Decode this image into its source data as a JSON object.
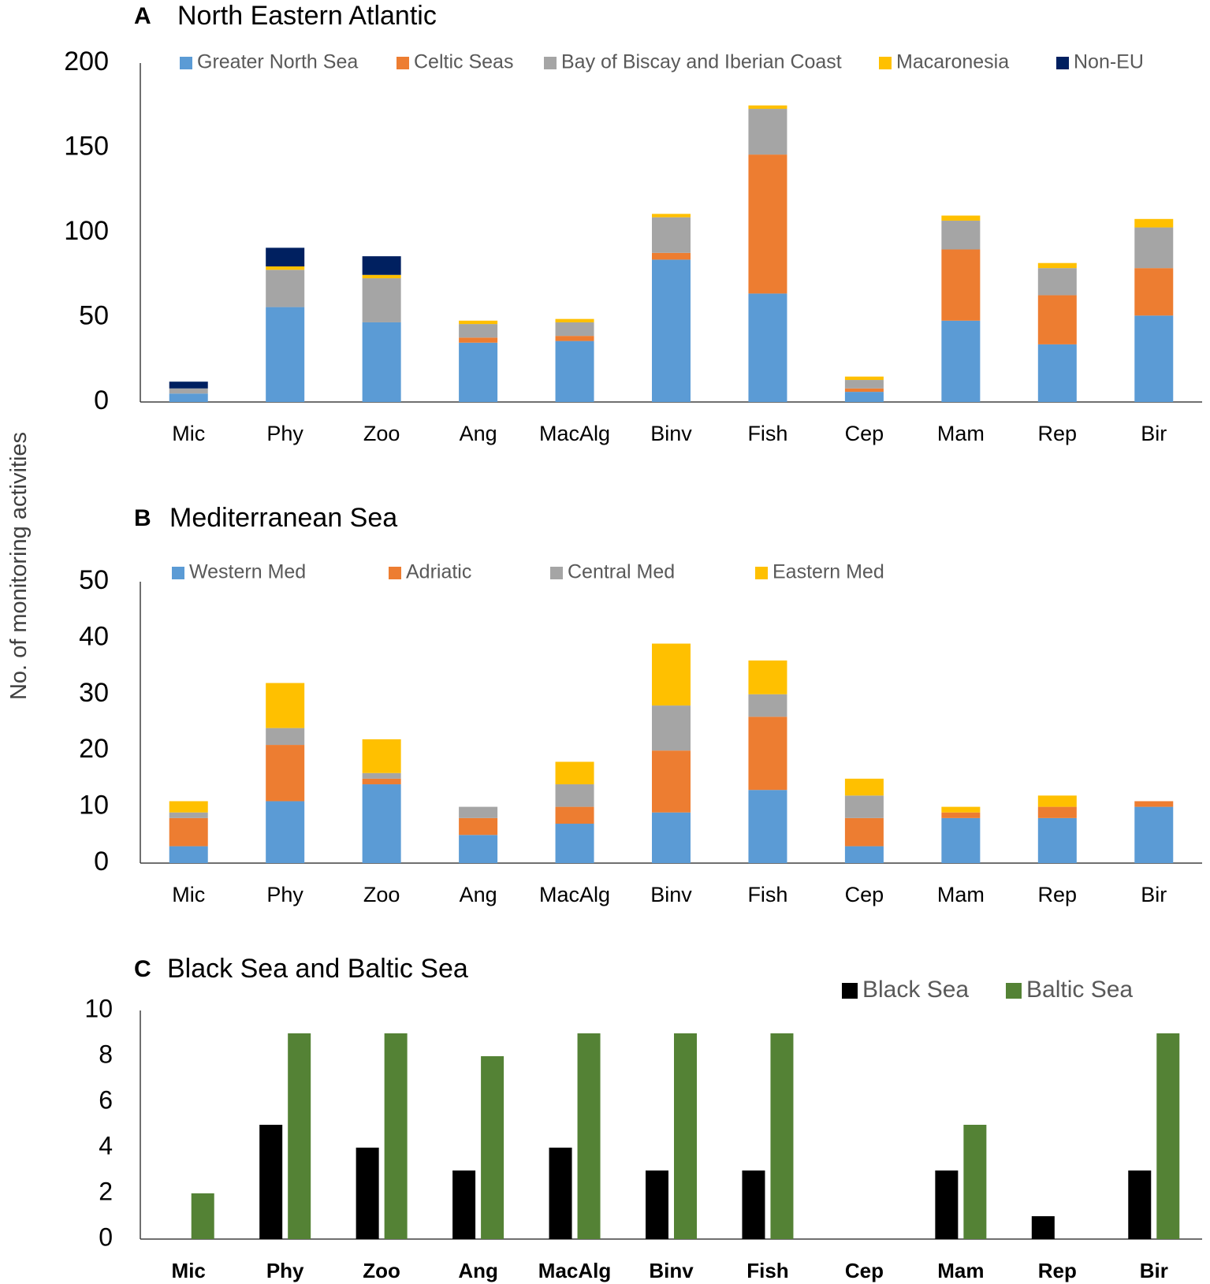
{
  "figure": {
    "ylabel": "No. of monitoring activities"
  },
  "chart_data": [
    {
      "type": "bar",
      "stacked": true,
      "panel_letter": "A",
      "title": "North Eastern Atlantic",
      "ylim": [
        0,
        200
      ],
      "yticks": [
        0,
        50,
        100,
        150,
        200
      ],
      "legend_placement": "top",
      "categories": [
        "Mic",
        "Phy",
        "Zoo",
        "Ang",
        "MacAlg",
        "Binv",
        "Fish",
        "Cep",
        "Mam",
        "Rep",
        "Bir"
      ],
      "series": [
        {
          "name": "Greater North Sea",
          "color": "#5b9bd5",
          "values": [
            5,
            56,
            47,
            35,
            36,
            84,
            64,
            6,
            48,
            34,
            51
          ]
        },
        {
          "name": "Celtic Seas",
          "color": "#ed7d31",
          "values": [
            0,
            0,
            0,
            3,
            3,
            4,
            82,
            2,
            42,
            29,
            28
          ]
        },
        {
          "name": "Bay of Biscay and Iberian Coast",
          "color": "#a5a5a5",
          "values": [
            3,
            22,
            26,
            8,
            8,
            21,
            27,
            5,
            17,
            16,
            24
          ]
        },
        {
          "name": "Macaronesia",
          "color": "#ffc000",
          "values": [
            0,
            2,
            2,
            2,
            2,
            2,
            2,
            2,
            3,
            3,
            5
          ]
        },
        {
          "name": "Non-EU",
          "color": "#002060",
          "values": [
            4,
            11,
            11,
            0,
            0,
            0,
            0,
            0,
            0,
            0,
            0
          ]
        }
      ]
    },
    {
      "type": "bar",
      "stacked": true,
      "panel_letter": "B",
      "title": "Mediterranean Sea",
      "ylim": [
        0,
        50
      ],
      "yticks": [
        0,
        10,
        20,
        30,
        40,
        50
      ],
      "legend_placement": "top",
      "categories": [
        "Mic",
        "Phy",
        "Zoo",
        "Ang",
        "MacAlg",
        "Binv",
        "Fish",
        "Cep",
        "Mam",
        "Rep",
        "Bir"
      ],
      "series": [
        {
          "name": "Western Med",
          "color": "#5b9bd5",
          "values": [
            3,
            11,
            14,
            5,
            7,
            9,
            13,
            3,
            8,
            8,
            10
          ]
        },
        {
          "name": "Adriatic",
          "color": "#ed7d31",
          "values": [
            5,
            10,
            1,
            3,
            3,
            11,
            13,
            5,
            1,
            2,
            1
          ]
        },
        {
          "name": "Central Med",
          "color": "#a5a5a5",
          "values": [
            1,
            3,
            1,
            2,
            4,
            8,
            4,
            4,
            0,
            0,
            0
          ]
        },
        {
          "name": "Eastern Med",
          "color": "#ffc000",
          "values": [
            2,
            8,
            6,
            0,
            4,
            11,
            6,
            3,
            1,
            2,
            0
          ]
        }
      ]
    },
    {
      "type": "bar",
      "stacked": false,
      "panel_letter": "C",
      "title": "Black Sea and Baltic Sea",
      "ylim": [
        0,
        10
      ],
      "yticks": [
        0,
        2,
        4,
        6,
        8,
        10
      ],
      "legend_placement": "top-right",
      "categories": [
        "Mic",
        "Phy",
        "Zoo",
        "Ang",
        "MacAlg",
        "Binv",
        "Fish",
        "Cep",
        "Mam",
        "Rep",
        "Bir"
      ],
      "series": [
        {
          "name": "Black Sea",
          "color": "#000000",
          "values": [
            0,
            5,
            4,
            3,
            4,
            3,
            3,
            0,
            3,
            1,
            3
          ]
        },
        {
          "name": "Baltic Sea",
          "color": "#548235",
          "values": [
            2,
            9,
            9,
            8,
            9,
            9,
            9,
            0,
            5,
            0,
            9
          ]
        }
      ]
    }
  ]
}
